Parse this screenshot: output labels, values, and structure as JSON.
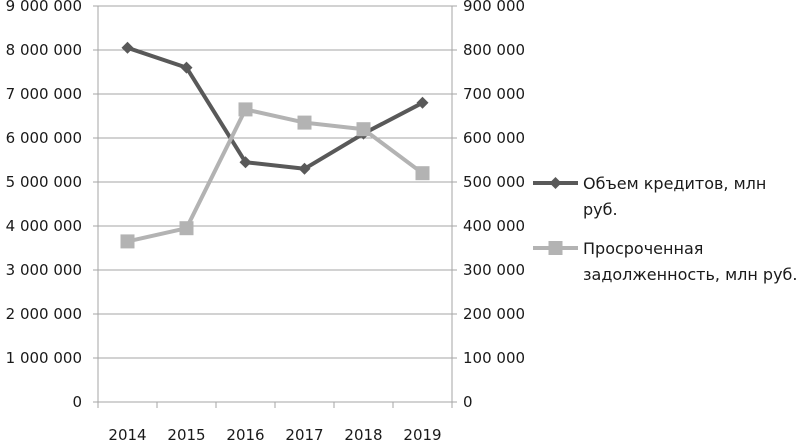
{
  "chart_data": {
    "type": "line",
    "categories": [
      "2014",
      "2015",
      "2016",
      "2017",
      "2018",
      "2019"
    ],
    "y_left": {
      "range": [
        0,
        9000000
      ],
      "ticks": [
        0,
        1000000,
        2000000,
        3000000,
        4000000,
        5000000,
        6000000,
        7000000,
        8000000,
        9000000
      ],
      "tick_labels": [
        "0",
        "1 000 000",
        "2 000 000",
        "3 000 000",
        "4 000 000",
        "5 000 000",
        "6 000 000",
        "7 000 000",
        "8 000 000",
        "9 000 000"
      ]
    },
    "y_right": {
      "range": [
        0,
        900000
      ],
      "ticks": [
        0,
        100000,
        200000,
        300000,
        400000,
        500000,
        600000,
        700000,
        800000,
        900000
      ],
      "tick_labels": [
        "0",
        "100 000",
        "200 000",
        "300 000",
        "400 000",
        "500 000",
        "600 000",
        "700 000",
        "800 000",
        "900 000"
      ]
    },
    "series": [
      {
        "name": "Объем кредитов, млн руб.",
        "name_lines": [
          "Объем кредитов, млн",
          "руб."
        ],
        "axis": "left",
        "marker": "diamond",
        "color": "#595959",
        "values": [
          8050000,
          7600000,
          5450000,
          5300000,
          6100000,
          6800000
        ]
      },
      {
        "name": "Просроченная задолженность, млн руб.",
        "name_lines": [
          "Просроченная",
          "задолженность, млн руб."
        ],
        "axis": "right",
        "marker": "square",
        "color": "#b3b3b3",
        "values": [
          365000,
          395000,
          665000,
          635000,
          620000,
          520000
        ]
      }
    ],
    "grid": "horizontal",
    "legend_position": "right"
  }
}
